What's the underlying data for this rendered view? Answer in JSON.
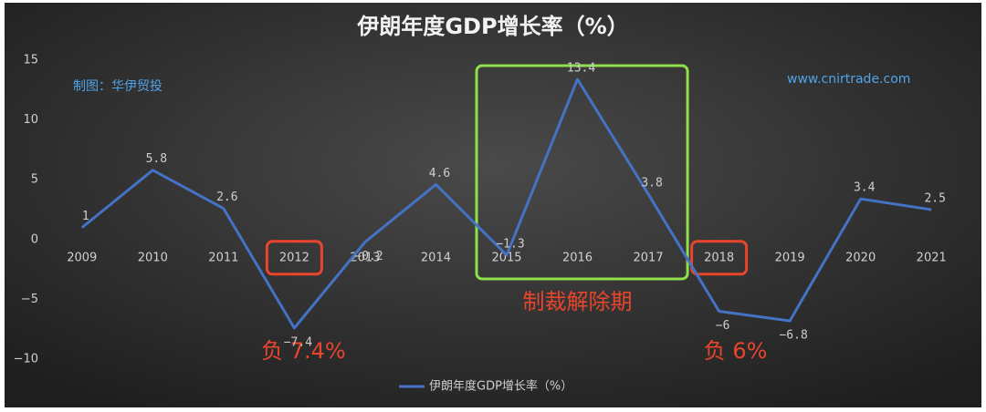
{
  "chart_data": {
    "type": "line",
    "title": "伊朗年度GDP增长率（%）",
    "categories": [
      "2009",
      "2010",
      "2011",
      "2012",
      "2013",
      "2014",
      "2015",
      "2016",
      "2017",
      "2018",
      "2019",
      "2020",
      "2021"
    ],
    "series": [
      {
        "name": "伊朗年度GDP增长率（%）",
        "color": "#4472c4",
        "values": [
          1,
          5.8,
          2.6,
          -7.4,
          -0.2,
          4.6,
          -1.3,
          13.4,
          3.8,
          -6,
          -6.8,
          3.4,
          2.5
        ],
        "value_labels": [
          "1",
          "5.8",
          "2.6",
          "−7.4",
          "−0.2",
          "4.6",
          "−1.3",
          "13.4",
          "3.8",
          "−6",
          "−6.8",
          "3.4",
          "2.5"
        ]
      }
    ],
    "ylim": [
      -10,
      15
    ],
    "yticks": [
      {
        "value": -10,
        "label": "−10"
      },
      {
        "value": -5,
        "label": "−5"
      },
      0,
      5,
      10,
      15
    ],
    "grid": false,
    "legend": "bottom",
    "annotations": [
      "制图：华伊贸投",
      "www.cnirtrade.com",
      "制裁解除期",
      "负 7.4%",
      "负 6%"
    ]
  }
}
